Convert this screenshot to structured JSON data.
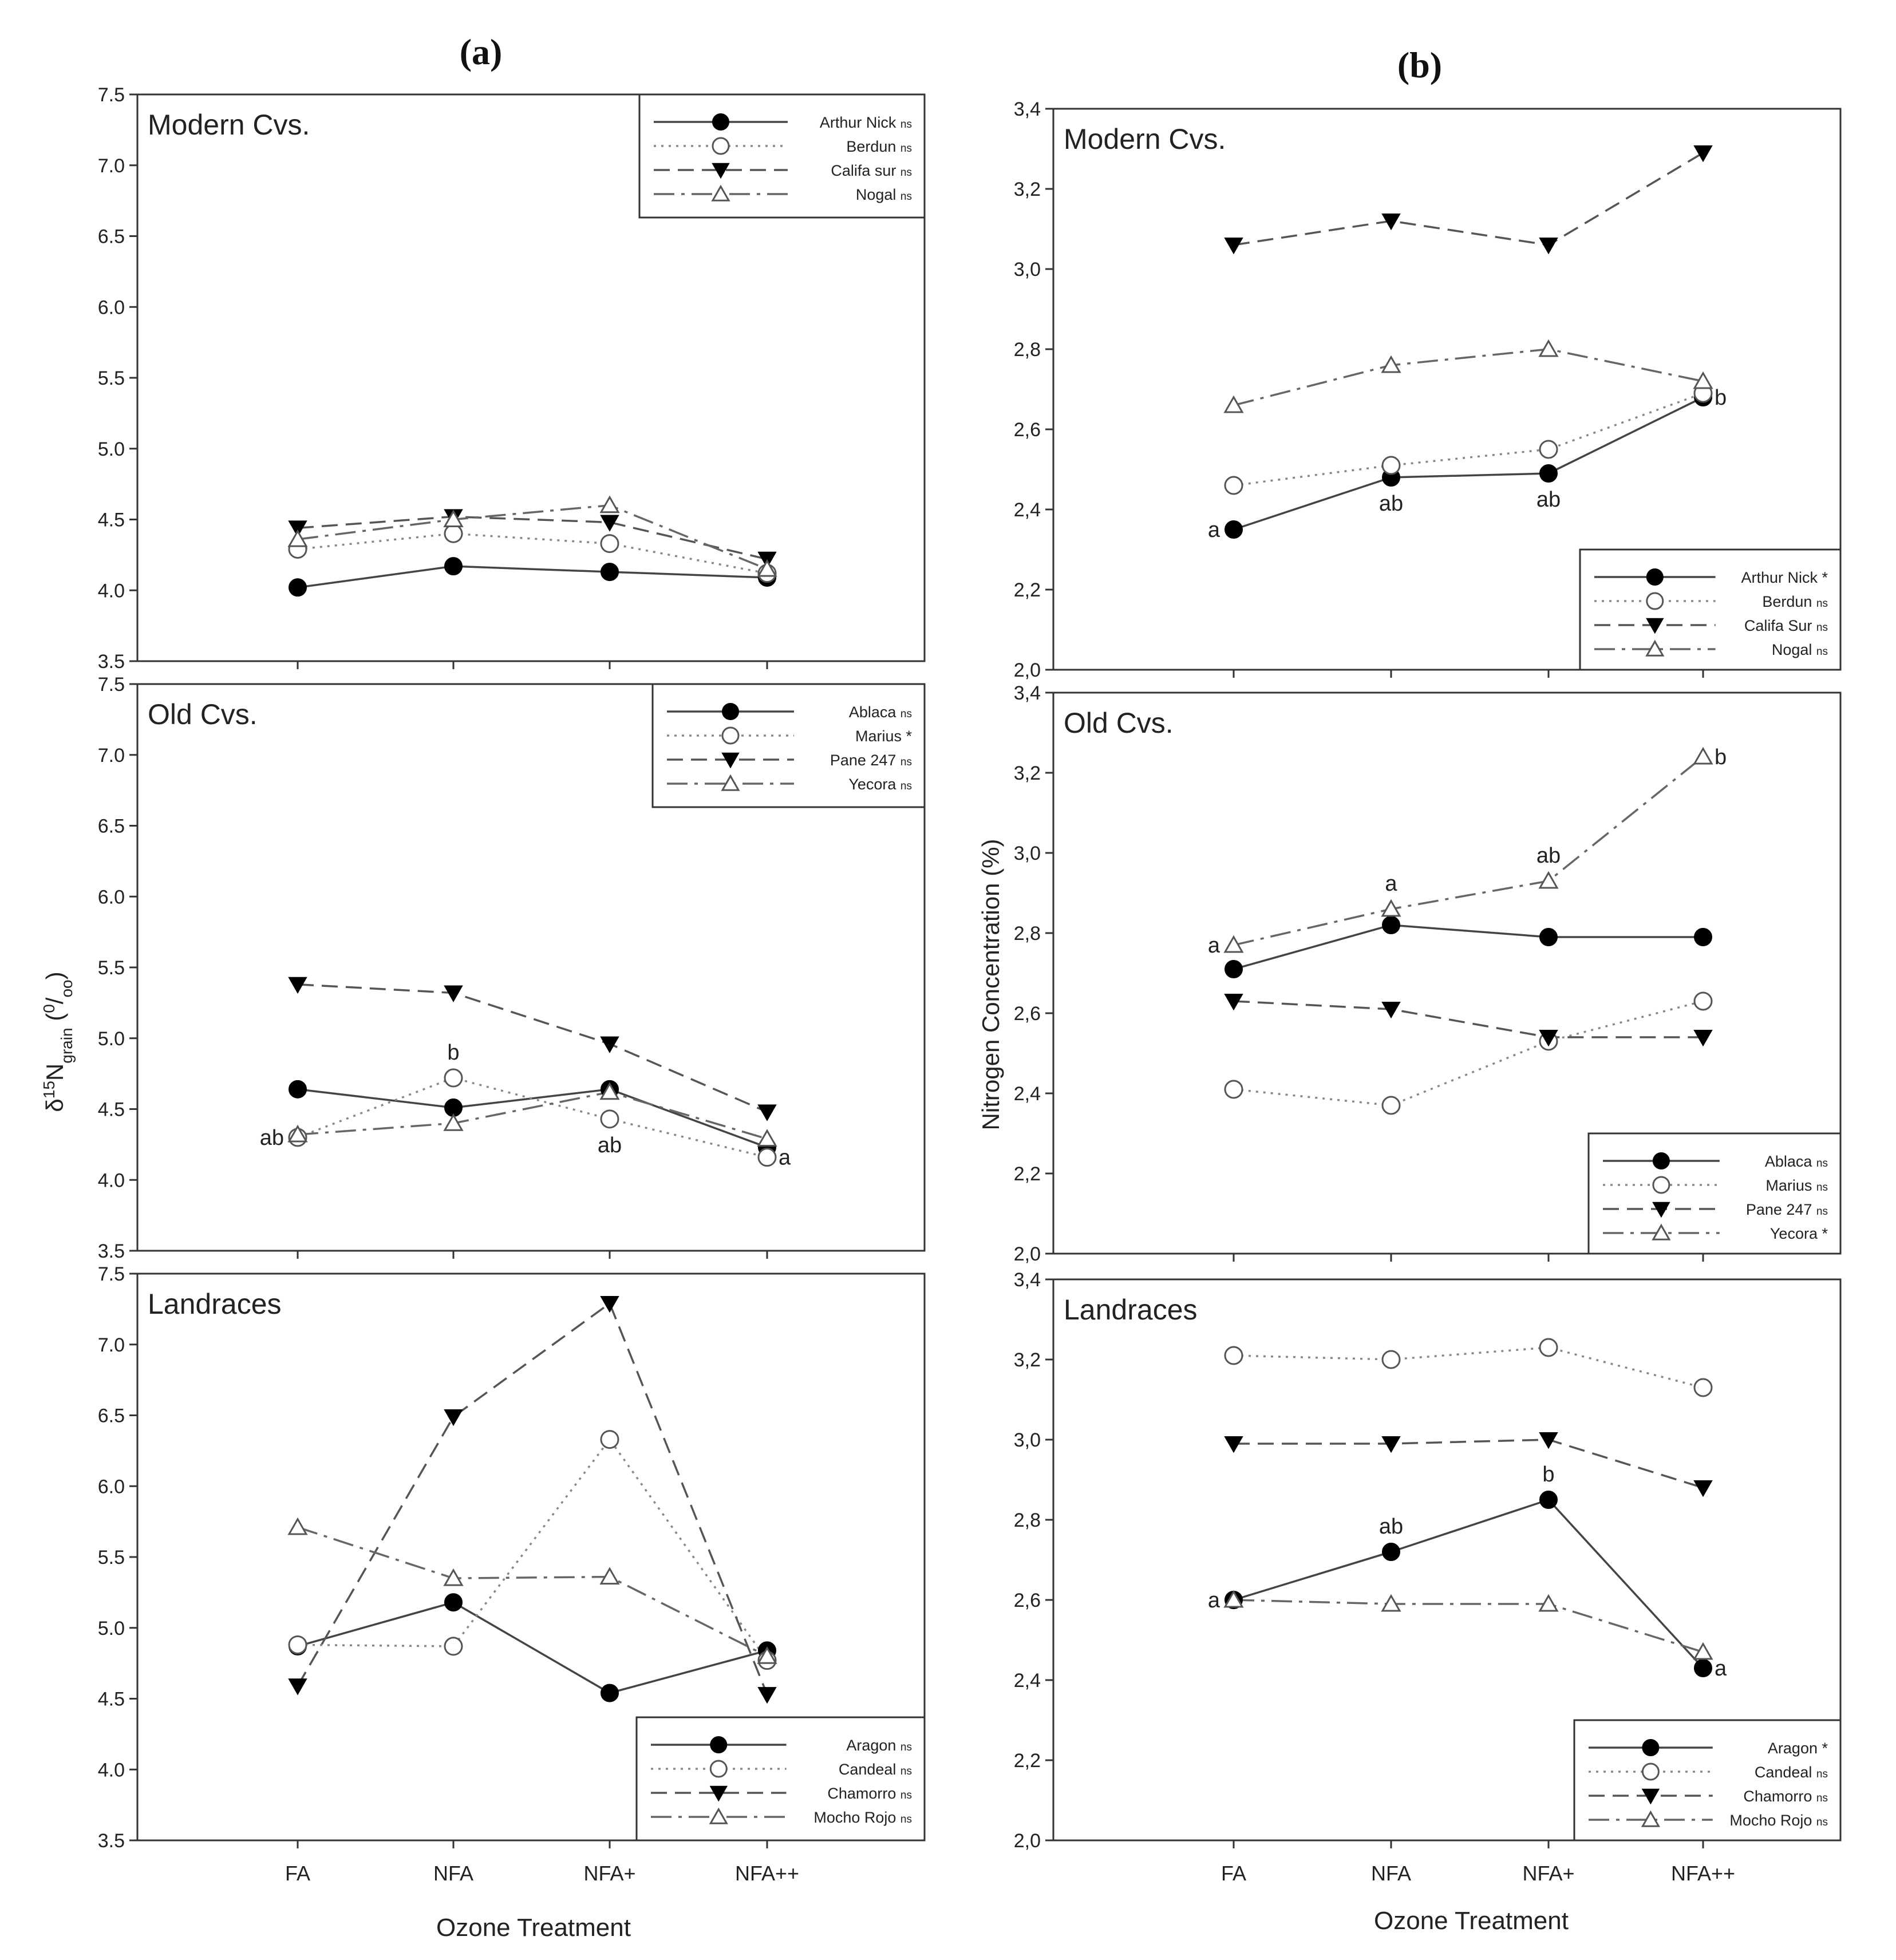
{
  "figure": {
    "panel_a_label": "(a)",
    "panel_b_label": "(b)",
    "x_axis_label": "Ozone Treatment",
    "y_axis_label_a": "δ15Ngrain (0/oo)",
    "y_axis_label_a_parts": {
      "main": "δ",
      "sup": "15",
      "n": "N",
      "sub": "grain",
      "open": " (",
      "o_sup": "0",
      "slash": "/",
      "o_sub": "oo",
      "close": ")"
    },
    "y_axis_label_b": "Nitrogen Concentration (%)"
  },
  "chart_data": [
    {
      "id": "a-modern",
      "type": "line",
      "title": "Modern Cvs.",
      "categories": [
        "FA",
        "NFA",
        "NFA+",
        "NFA++"
      ],
      "ylim": [
        3.5,
        7.5
      ],
      "yticks": [
        "3.5",
        "4.0",
        "4.5",
        "5.0",
        "5.5",
        "6.0",
        "6.5",
        "7.0",
        "7.5"
      ],
      "legend_position": "top-right",
      "series": [
        {
          "name": "Arthur Nick",
          "sig": "ns",
          "marker": "filled-circle",
          "dash": "solid",
          "values": [
            4.02,
            4.17,
            4.13,
            4.09
          ]
        },
        {
          "name": "Berdun",
          "sig": "ns",
          "marker": "open-circle",
          "dash": "dotted",
          "values": [
            4.29,
            4.4,
            4.33,
            4.12
          ]
        },
        {
          "name": "Califa sur",
          "sig": "ns",
          "marker": "filled-triangle-down",
          "dash": "dashed",
          "values": [
            4.44,
            4.52,
            4.48,
            4.22
          ]
        },
        {
          "name": "Nogal",
          "sig": "ns",
          "marker": "open-triangle-up",
          "dash": "dashdot",
          "values": [
            4.36,
            4.5,
            4.6,
            4.15
          ]
        }
      ],
      "annotations": []
    },
    {
      "id": "a-old",
      "type": "line",
      "title": "Old Cvs.",
      "categories": [
        "FA",
        "NFA",
        "NFA+",
        "NFA++"
      ],
      "ylim": [
        3.5,
        7.5
      ],
      "yticks": [
        "3.5",
        "4.0",
        "4.5",
        "5.0",
        "5.5",
        "6.0",
        "6.5",
        "7.0",
        "7.5"
      ],
      "legend_position": "top-right",
      "series": [
        {
          "name": "Ablaca",
          "sig": "ns",
          "marker": "filled-circle",
          "dash": "solid",
          "values": [
            4.64,
            4.51,
            4.64,
            4.23
          ]
        },
        {
          "name": "Marius",
          "sig": "*",
          "marker": "open-circle",
          "dash": "dotted",
          "values": [
            4.3,
            4.72,
            4.43,
            4.16
          ]
        },
        {
          "name": "Pane 247",
          "sig": "ns",
          "marker": "filled-triangle-down",
          "dash": "dashed",
          "values": [
            5.38,
            5.32,
            4.96,
            4.48
          ]
        },
        {
          "name": "Yecora",
          "sig": "ns",
          "marker": "open-triangle-up",
          "dash": "dashdot",
          "values": [
            4.32,
            4.4,
            4.62,
            4.29
          ]
        }
      ],
      "annotations": [
        {
          "text": "ab",
          "cat": 0,
          "value": 4.3,
          "pos": "left"
        },
        {
          "text": "b",
          "cat": 1,
          "value": 4.72,
          "pos": "above"
        },
        {
          "text": "ab",
          "cat": 2,
          "value": 4.43,
          "pos": "below"
        },
        {
          "text": "a",
          "cat": 3,
          "value": 4.16,
          "pos": "right"
        }
      ]
    },
    {
      "id": "a-land",
      "type": "line",
      "title": "Landraces",
      "categories": [
        "FA",
        "NFA",
        "NFA+",
        "NFA++"
      ],
      "ylim": [
        3.5,
        7.5
      ],
      "yticks": [
        "3.5",
        "4.0",
        "4.5",
        "5.0",
        "5.5",
        "6.0",
        "6.5",
        "7.0",
        "7.5"
      ],
      "legend_position": "bottom-right",
      "series": [
        {
          "name": "Aragon",
          "sig": "ns",
          "marker": "filled-circle",
          "dash": "solid",
          "values": [
            4.87,
            5.18,
            4.54,
            4.84
          ]
        },
        {
          "name": "Candeal",
          "sig": "ns",
          "marker": "open-circle",
          "dash": "dotted",
          "values": [
            4.88,
            4.87,
            6.33,
            4.77
          ]
        },
        {
          "name": "Chamorro",
          "sig": "ns",
          "marker": "filled-triangle-down",
          "dash": "dashed",
          "values": [
            4.59,
            6.49,
            7.29,
            4.53
          ]
        },
        {
          "name": "Mocho Rojo",
          "sig": "ns",
          "marker": "open-triangle-up",
          "dash": "dashdot",
          "values": [
            5.71,
            5.35,
            5.36,
            4.8
          ]
        }
      ],
      "annotations": []
    },
    {
      "id": "b-modern",
      "type": "line",
      "title": "Modern Cvs.",
      "categories": [
        "FA",
        "NFA",
        "NFA+",
        "NFA++"
      ],
      "ylim": [
        2.0,
        3.4
      ],
      "yticks": [
        "2,0",
        "2,2",
        "2,4",
        "2,6",
        "2,8",
        "3,0",
        "3,2",
        "3,4"
      ],
      "legend_position": "bottom-right",
      "series": [
        {
          "name": "Arthur Nick",
          "sig": "*",
          "marker": "filled-circle",
          "dash": "solid",
          "values": [
            2.35,
            2.48,
            2.49,
            2.68
          ]
        },
        {
          "name": "Berdun",
          "sig": "ns",
          "marker": "open-circle",
          "dash": "dotted",
          "values": [
            2.46,
            2.51,
            2.55,
            2.69
          ]
        },
        {
          "name": "Califa Sur",
          "sig": "ns",
          "marker": "filled-triangle-down",
          "dash": "dashed",
          "values": [
            3.06,
            3.12,
            3.06,
            3.29
          ]
        },
        {
          "name": "Nogal",
          "sig": "ns",
          "marker": "open-triangle-up",
          "dash": "dashdot",
          "values": [
            2.66,
            2.76,
            2.8,
            2.72
          ]
        }
      ],
      "annotations": [
        {
          "text": "a",
          "cat": 0,
          "value": 2.35,
          "pos": "left"
        },
        {
          "text": "ab",
          "cat": 1,
          "value": 2.48,
          "pos": "below"
        },
        {
          "text": "ab",
          "cat": 2,
          "value": 2.49,
          "pos": "below"
        },
        {
          "text": "b",
          "cat": 3,
          "value": 2.68,
          "pos": "right"
        }
      ]
    },
    {
      "id": "b-old",
      "type": "line",
      "title": "Old Cvs.",
      "categories": [
        "FA",
        "NFA",
        "NFA+",
        "NFA++"
      ],
      "ylim": [
        2.0,
        3.4
      ],
      "yticks": [
        "2,0",
        "2,2",
        "2,4",
        "2,6",
        "2,8",
        "3,0",
        "3,2",
        "3,4"
      ],
      "legend_position": "bottom-right",
      "series": [
        {
          "name": "Ablaca",
          "sig": "ns",
          "marker": "filled-circle",
          "dash": "solid",
          "values": [
            2.71,
            2.82,
            2.79,
            2.79
          ]
        },
        {
          "name": "Marius",
          "sig": "ns",
          "marker": "open-circle",
          "dash": "dotted",
          "values": [
            2.41,
            2.37,
            2.53,
            2.63
          ]
        },
        {
          "name": "Pane 247",
          "sig": "ns",
          "marker": "filled-triangle-down",
          "dash": "dashed",
          "values": [
            2.63,
            2.61,
            2.54,
            2.54
          ]
        },
        {
          "name": "Yecora",
          "sig": "*",
          "marker": "open-triangle-up",
          "dash": "dashdot",
          "values": [
            2.77,
            2.86,
            2.93,
            3.24
          ]
        }
      ],
      "annotations": [
        {
          "text": "a",
          "cat": 0,
          "value": 2.77,
          "pos": "left"
        },
        {
          "text": "a",
          "cat": 1,
          "value": 2.86,
          "pos": "above"
        },
        {
          "text": "ab",
          "cat": 2,
          "value": 2.93,
          "pos": "above"
        },
        {
          "text": "b",
          "cat": 3,
          "value": 3.24,
          "pos": "right"
        }
      ]
    },
    {
      "id": "b-land",
      "type": "line",
      "title": "Landraces",
      "categories": [
        "FA",
        "NFA",
        "NFA+",
        "NFA++"
      ],
      "ylim": [
        2.0,
        3.4
      ],
      "yticks": [
        "2,0",
        "2,2",
        "2,4",
        "2,6",
        "2,8",
        "3,0",
        "3,2",
        "3,4"
      ],
      "legend_position": "bottom-right",
      "series": [
        {
          "name": "Aragon",
          "sig": "*",
          "marker": "filled-circle",
          "dash": "solid",
          "values": [
            2.6,
            2.72,
            2.85,
            2.43
          ]
        },
        {
          "name": "Candeal",
          "sig": "ns",
          "marker": "open-circle",
          "dash": "dotted",
          "values": [
            3.21,
            3.2,
            3.23,
            3.13
          ]
        },
        {
          "name": "Chamorro",
          "sig": "ns",
          "marker": "filled-triangle-down",
          "dash": "dashed",
          "values": [
            2.99,
            2.99,
            3.0,
            2.88
          ]
        },
        {
          "name": "Mocho Rojo",
          "sig": "ns",
          "marker": "open-triangle-up",
          "dash": "dashdot",
          "values": [
            2.6,
            2.59,
            2.59,
            2.47
          ]
        }
      ],
      "annotations": [
        {
          "text": "a",
          "cat": 0,
          "value": 2.6,
          "pos": "left"
        },
        {
          "text": "ab",
          "cat": 1,
          "value": 2.72,
          "pos": "above"
        },
        {
          "text": "b",
          "cat": 2,
          "value": 2.85,
          "pos": "above"
        },
        {
          "text": "a",
          "cat": 3,
          "value": 2.43,
          "pos": "right"
        }
      ]
    }
  ]
}
